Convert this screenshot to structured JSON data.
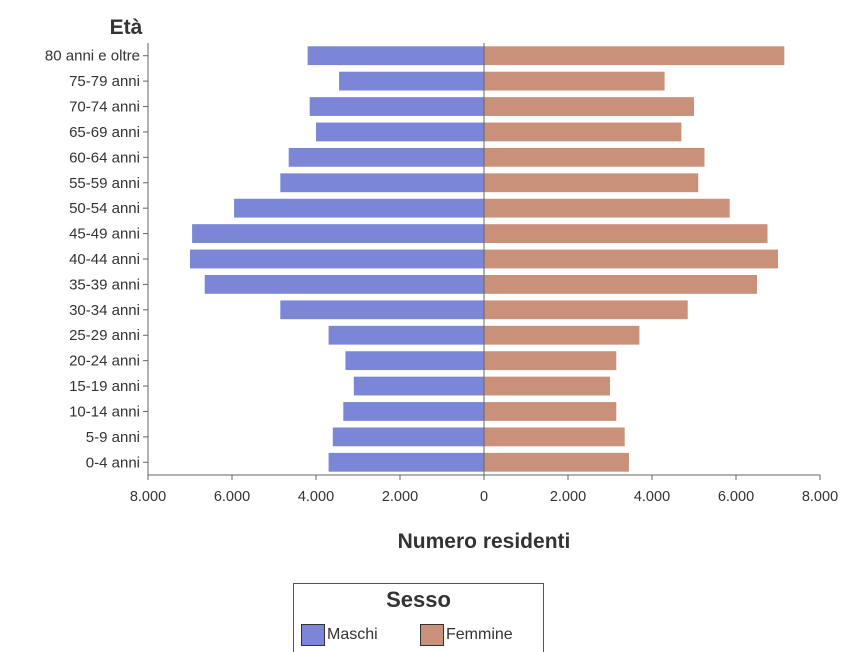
{
  "chart_data": {
    "type": "bar",
    "orientation": "horizontal",
    "layout": "population-pyramid",
    "y_title": "Età",
    "xlabel": "Numero residenti",
    "categories": [
      "0-4 anni",
      "5-9 anni",
      "10-14 anni",
      "15-19 anni",
      "20-24 anni",
      "25-29 anni",
      "30-34 anni",
      "35-39 anni",
      "40-44 anni",
      "45-49 anni",
      "50-54 anni",
      "55-59 anni",
      "60-64 anni",
      "65-69 anni",
      "70-74 anni",
      "75-79 anni",
      "80 anni e oltre"
    ],
    "series": [
      {
        "name": "Maschi",
        "color": "#7b87d6",
        "side": "left",
        "values": [
          3700,
          3600,
          3350,
          3100,
          3300,
          3700,
          4850,
          6650,
          7000,
          6950,
          5950,
          4850,
          4650,
          4000,
          4150,
          3450,
          4200
        ]
      },
      {
        "name": "Femmine",
        "color": "#c9907a",
        "side": "right",
        "values": [
          3450,
          3350,
          3150,
          3000,
          3150,
          3700,
          4850,
          6500,
          7000,
          6750,
          5850,
          5100,
          5250,
          4700,
          5000,
          4300,
          7150
        ]
      }
    ],
    "xlim": [
      -8000,
      8000
    ],
    "x_ticks": [
      -8000,
      -6000,
      -4000,
      -2000,
      0,
      2000,
      4000,
      6000,
      8000
    ],
    "x_tick_labels": [
      "8.000",
      "6.000",
      "4.000",
      "2.000",
      "0",
      "2.000",
      "4.000",
      "6.000",
      "8.000"
    ],
    "grid": false,
    "legend": {
      "title": "Sesso",
      "position": "bottom-center"
    }
  }
}
